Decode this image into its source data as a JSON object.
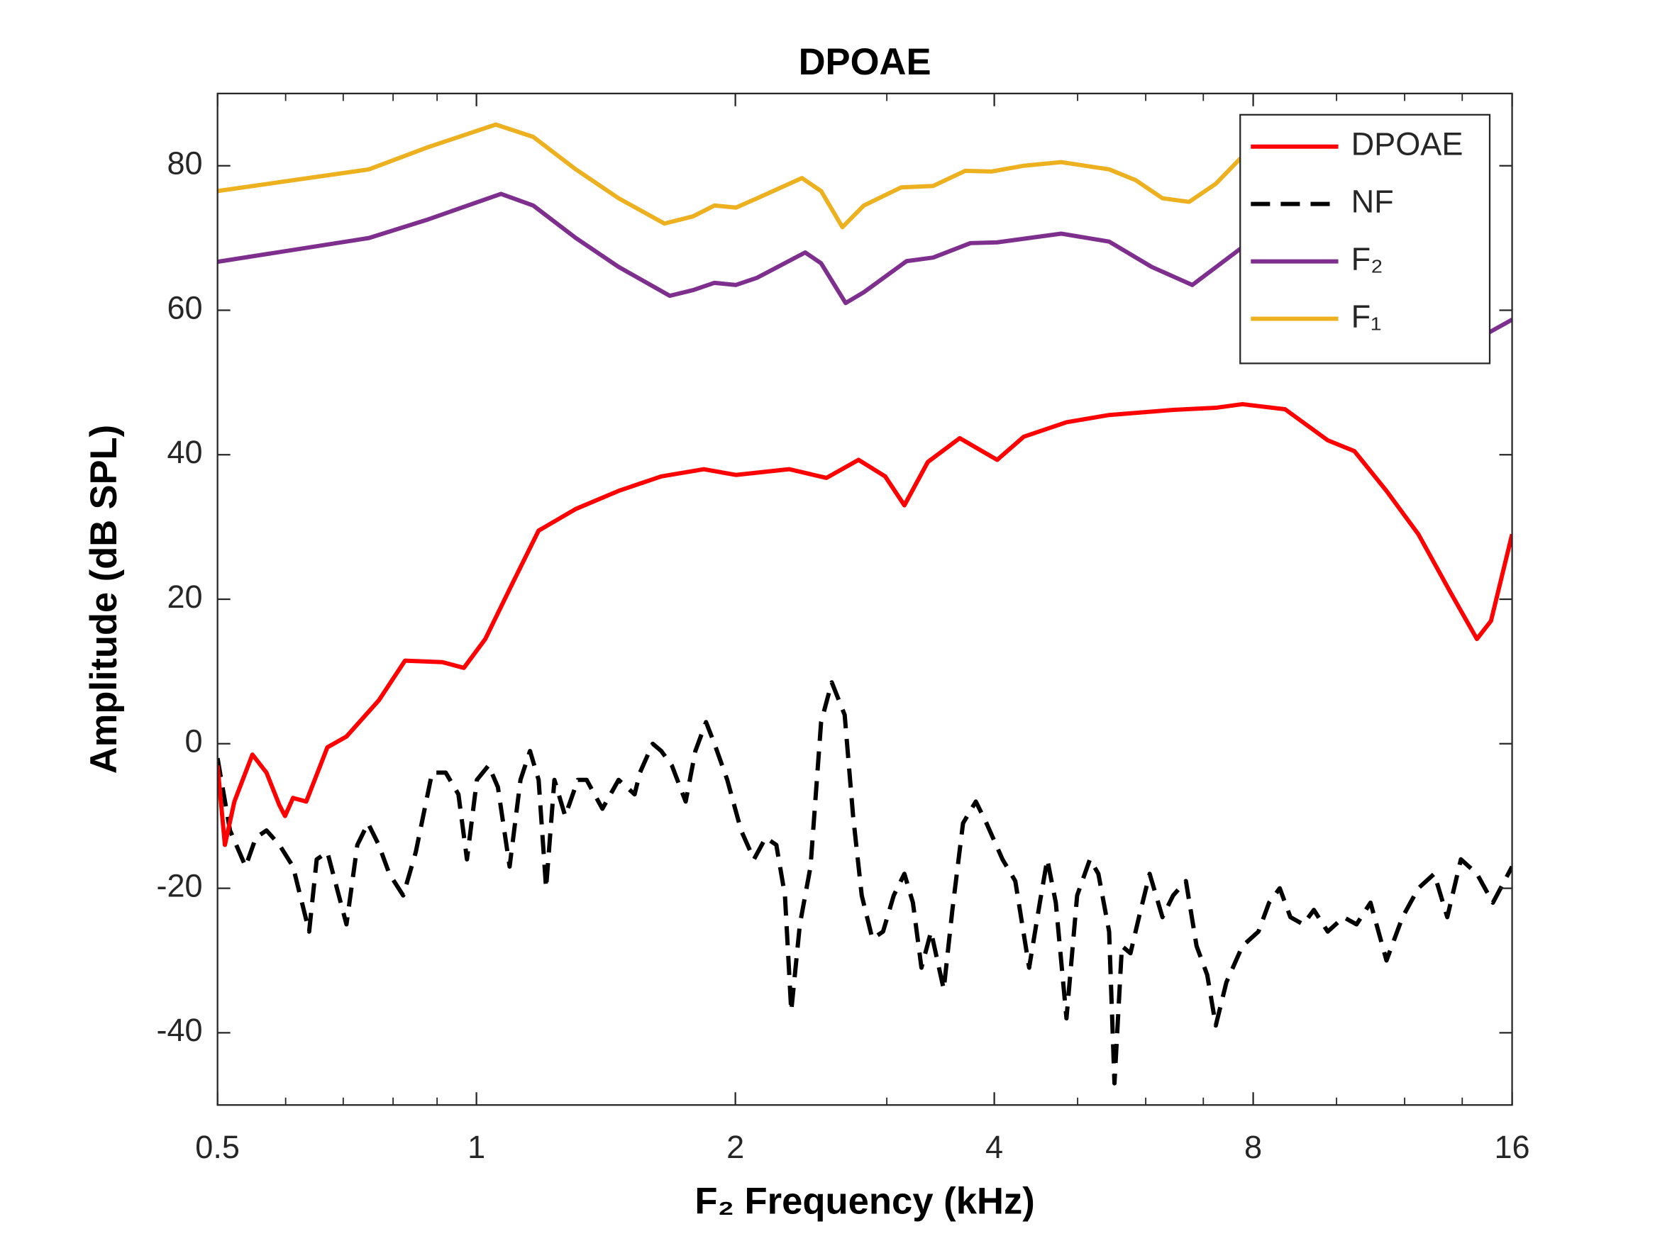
{
  "chart_data": {
    "type": "line",
    "title": "DPOAE",
    "xlabel": "F₂ Frequency (kHz)",
    "ylabel": "Amplitude (dB SPL)",
    "xscale": "log",
    "xlim": [
      0.5,
      16
    ],
    "ylim": [
      -50,
      90
    ],
    "xticks": [
      0.5,
      1,
      2,
      4,
      8,
      16
    ],
    "xminorticks": [
      0.6,
      0.7,
      0.8,
      0.9,
      3,
      5,
      6,
      7,
      10,
      12,
      14
    ],
    "yticks": [
      -40,
      -20,
      0,
      20,
      40,
      60,
      80
    ],
    "grid": false,
    "legend": "northeast",
    "series": [
      {
        "name": "DPOAE",
        "color": "#ff0000",
        "style": "solid",
        "x": [
          0.5,
          0.51,
          0.523,
          0.549,
          0.57,
          0.59,
          0.599,
          0.612,
          0.634,
          0.671,
          0.706,
          0.77,
          0.826,
          0.913,
          0.967,
          1.024,
          1.099,
          1.181,
          1.305,
          1.463,
          1.64,
          1.838,
          2.003,
          2.31,
          2.552,
          2.781,
          2.987,
          3.144,
          3.348,
          3.647,
          4.031,
          4.329,
          4.853,
          5.44,
          6.456,
          7.237,
          7.773,
          8.713,
          9.767,
          10.49,
          11.43,
          12.45,
          13.56,
          14.56,
          15.12,
          16
        ],
        "values": [
          -3,
          -14,
          -8,
          -1.5,
          -4,
          -8.5,
          -10,
          -7.5,
          -8,
          -0.5,
          1,
          6,
          11.5,
          11.3,
          10.5,
          14.5,
          22,
          29.5,
          32.5,
          35,
          37,
          38,
          37.2,
          38,
          36.8,
          39.3,
          37,
          33,
          39,
          42.3,
          39.3,
          42.5,
          44.5,
          45.5,
          46.2,
          46.5,
          47,
          46.3,
          42,
          40.5,
          35,
          29,
          21,
          14.5,
          17,
          29
        ]
      },
      {
        "name": "NF",
        "color": "#000000",
        "style": "dashed",
        "x": [
          0.5,
          0.517,
          0.539,
          0.554,
          0.57,
          0.59,
          0.612,
          0.639,
          0.652,
          0.671,
          0.706,
          0.727,
          0.748,
          0.77,
          0.792,
          0.822,
          0.85,
          0.888,
          0.921,
          0.953,
          0.975,
          1.001,
          1.033,
          1.059,
          1.093,
          1.125,
          1.154,
          1.181,
          1.205,
          1.232,
          1.268,
          1.312,
          1.343,
          1.401,
          1.463,
          1.527,
          1.549,
          1.603,
          1.64,
          1.687,
          1.751,
          1.797,
          1.849,
          1.891,
          1.957,
          2.031,
          2.102,
          2.169,
          2.232,
          2.284,
          2.323,
          2.377,
          2.446,
          2.516,
          2.589,
          2.68,
          2.741,
          2.805,
          2.886,
          2.97,
          3.056,
          3.144,
          3.217,
          3.291,
          3.377,
          3.494,
          3.575,
          3.679,
          3.807,
          3.917,
          4.089,
          4.231,
          4.391,
          4.518,
          4.61,
          4.716,
          4.853,
          4.993,
          5.167,
          5.286,
          5.44,
          5.518,
          5.629,
          5.759,
          5.892,
          6.063,
          6.274,
          6.456,
          6.681,
          6.874,
          7.073,
          7.237,
          7.446,
          7.773,
          8.113,
          8.347,
          8.589,
          8.838,
          9.146,
          9.41,
          9.767,
          10.19,
          10.55,
          10.95,
          11.43,
          11.93,
          12.45,
          12.99,
          13.45,
          13.95,
          14.56,
          15.2,
          16
        ],
        "values": [
          -2,
          -12,
          -17,
          -13,
          -12,
          -14,
          -17,
          -26,
          -16,
          -15,
          -25,
          -14,
          -11,
          -14,
          -18,
          -21,
          -15,
          -4,
          -4,
          -7,
          -16,
          -5,
          -3,
          -6,
          -17,
          -5,
          -1,
          -5,
          -20,
          -5,
          -10,
          -5,
          -5,
          -9,
          -5,
          -7,
          -4,
          0,
          -1,
          -3,
          -8,
          -1,
          3,
          0,
          -5,
          -12,
          -16,
          -13,
          -14,
          -21,
          -37,
          -25,
          -17,
          3,
          8.5,
          4,
          -10,
          -21,
          -27,
          -26,
          -21,
          -18,
          -22,
          -31,
          -26,
          -34,
          -23,
          -11,
          -8,
          -11,
          -16,
          -19,
          -31,
          -22,
          -16,
          -22,
          -38,
          -21,
          -16,
          -18,
          -26,
          -47,
          -28,
          -29,
          -24,
          -18,
          -24,
          -21,
          -19,
          -28,
          -32,
          -39,
          -33,
          -28,
          -26,
          -22,
          -20,
          -24,
          -25,
          -23,
          -26,
          -24,
          -25,
          -22,
          -30,
          -24,
          -20,
          -18,
          -24,
          -16,
          -18,
          -22,
          -17
        ]
      },
      {
        "name": "F₂",
        "color": "#7e2f8e",
        "style": "solid",
        "x": [
          0.5,
          0.75,
          0.875,
          1.068,
          1.164,
          1.305,
          1.463,
          1.678,
          1.786,
          1.891,
          2.003,
          2.12,
          2.411,
          2.516,
          2.687,
          2.821,
          3.162,
          3.396,
          3.753,
          4.031,
          4.784,
          5.44,
          6.097,
          6.796,
          7.728,
          8.589,
          10.19,
          12.1,
          14.36,
          15.08,
          16
        ],
        "values": [
          66.7,
          70,
          72.5,
          76.1,
          74.5,
          70,
          66,
          62,
          62.8,
          63.8,
          63.5,
          64.5,
          68,
          66.5,
          61,
          62.5,
          66.8,
          67.3,
          69.3,
          69.4,
          70.6,
          69.5,
          66,
          63.5,
          68.5,
          70,
          68,
          63,
          58,
          57,
          58.7
        ]
      },
      {
        "name": "F₁",
        "color": "#edb120",
        "style": "solid",
        "x": [
          0.5,
          0.75,
          0.875,
          1.053,
          1.164,
          1.305,
          1.463,
          1.654,
          1.786,
          1.891,
          2.003,
          2.12,
          2.39,
          2.516,
          2.664,
          2.821,
          3.117,
          3.396,
          3.7,
          3.973,
          4.329,
          4.784,
          5.44,
          5.842,
          6.274,
          6.738,
          7.237,
          7.728,
          8.589,
          10.19,
          12.1,
          14.36
        ],
        "values": [
          76.5,
          79.5,
          82.5,
          85.7,
          84,
          79.5,
          75.5,
          72,
          73,
          74.5,
          74.2,
          75.5,
          78.3,
          76.5,
          71.5,
          74.5,
          77,
          77.2,
          79.3,
          79.2,
          80,
          80.5,
          79.5,
          78,
          75.5,
          75,
          77.5,
          81,
          81,
          79,
          73,
          66
        ]
      }
    ]
  }
}
